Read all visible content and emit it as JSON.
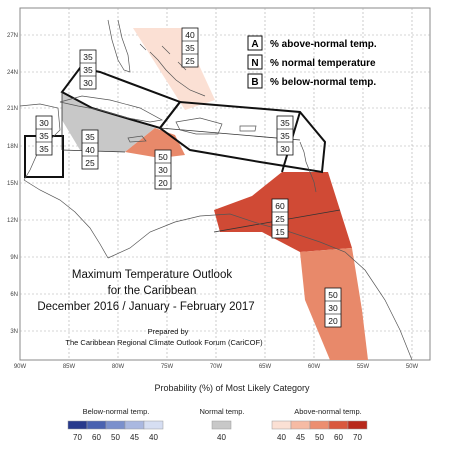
{
  "lat_labels": [
    "27N",
    "24N",
    "21N",
    "18N",
    "15N",
    "12N",
    "9N",
    "6N",
    "3N"
  ],
  "lon_labels": [
    "90W",
    "85W",
    "80W",
    "75W",
    "70W",
    "65W",
    "60W",
    "55W",
    "50W"
  ],
  "legend_box": [
    {
      "letter": "A",
      "text": "% above-normal temp."
    },
    {
      "letter": "N",
      "text": "% normal temperature"
    },
    {
      "letter": "B",
      "text": "% below-normal temp."
    }
  ],
  "regions": [
    {
      "id": "bahamas",
      "values": [
        "40",
        "35",
        "25"
      ],
      "fill": "#fbe0d4"
    },
    {
      "id": "cuba-bahamas",
      "values": [
        "35",
        "35",
        "30"
      ],
      "fill": "none"
    },
    {
      "id": "belize",
      "values": [
        "30",
        "35",
        "35"
      ],
      "fill": "none"
    },
    {
      "id": "jamaica-cayman",
      "values": [
        "35",
        "40",
        "25"
      ],
      "fill": "#c8c8c8"
    },
    {
      "id": "hispaniola-pr",
      "values": [
        "35",
        "35",
        "30"
      ],
      "fill": "none"
    },
    {
      "id": "central-caribbean",
      "values": [
        "50",
        "30",
        "20"
      ],
      "fill": "#e8896a"
    },
    {
      "id": "eastern-caribbean",
      "values": [
        "60",
        "25",
        "15"
      ],
      "fill": "#d04a35"
    },
    {
      "id": "guianas",
      "values": [
        "50",
        "30",
        "20"
      ],
      "fill": "#e8896a"
    }
  ],
  "title": {
    "line1": "Maximum Temperature Outlook",
    "line2": "for the Caribbean",
    "line3": "December 2016 / January - February 2017",
    "prepared": "Prepared by",
    "org": "The Caribbean Regional Climate Outlook Forum (CariCOF)"
  },
  "scale": {
    "heading": "Probability (%) of Most Likely Category",
    "below": {
      "label": "Below-normal temp.",
      "ticks": [
        "70",
        "60",
        "50",
        "45",
        "40"
      ],
      "colors": [
        "#283a8c",
        "#4a62b0",
        "#7b90cc",
        "#aab8e0",
        "#d6def2"
      ]
    },
    "normal": {
      "label": "Normal temp.",
      "ticks": [
        "40"
      ],
      "colors": [
        "#c8c8c8"
      ]
    },
    "above": {
      "label": "Above-normal temp.",
      "ticks": [
        "40",
        "45",
        "50",
        "60",
        "70"
      ],
      "colors": [
        "#fbe0d4",
        "#f6bba4",
        "#ec8e70",
        "#d9583e",
        "#b8291c"
      ]
    }
  }
}
